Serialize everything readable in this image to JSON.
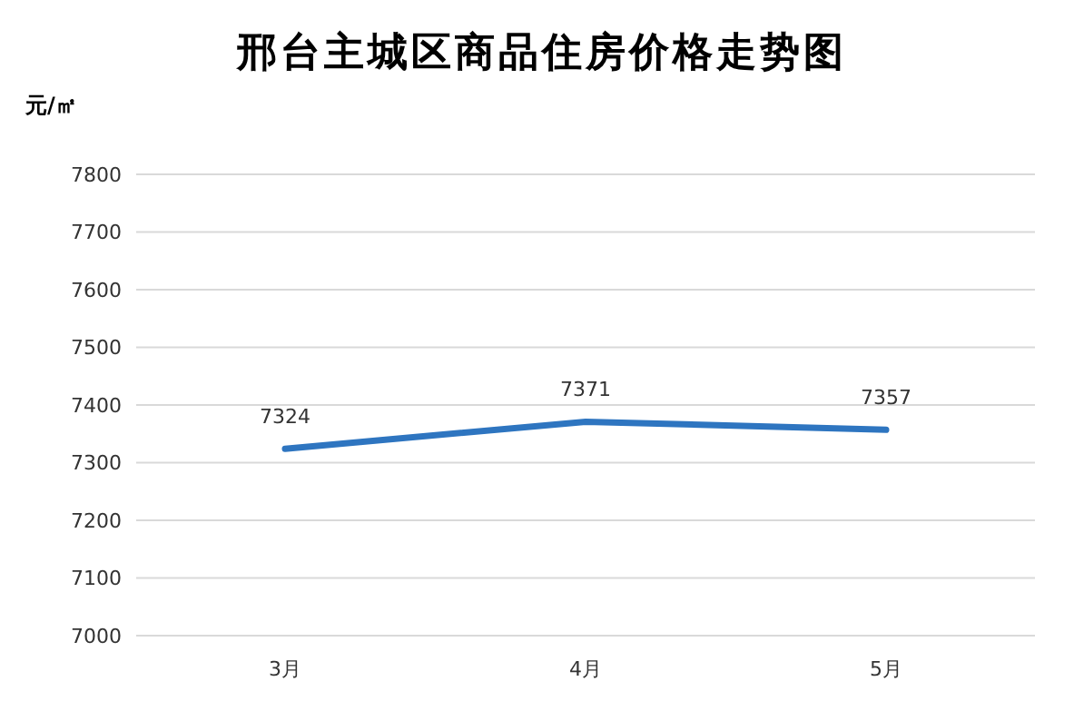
{
  "chart_data": {
    "type": "line",
    "title": "邢台主城区商品住房价格走势图",
    "ylabel": "元/㎡",
    "categories": [
      "3月",
      "4月",
      "5月"
    ],
    "series": [
      {
        "color": "#2e75c0",
        "values": [
          7324,
          7371,
          7357
        ]
      }
    ],
    "ylim": [
      7000,
      7800
    ],
    "yticks": [
      7000,
      7100,
      7200,
      7300,
      7400,
      7500,
      7600,
      7700,
      7800
    ],
    "grid": "y",
    "data_labels": true,
    "marker": "none",
    "line_style": "solid",
    "legend": false
  }
}
